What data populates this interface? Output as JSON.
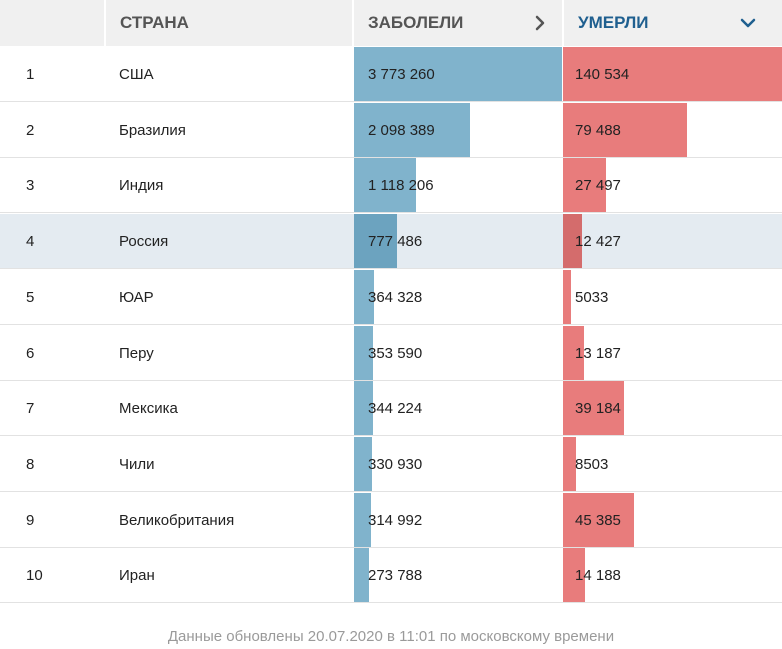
{
  "header": {
    "country": "СТРАНА",
    "cases": "ЗАБОЛЕЛИ",
    "deaths": "УМЕРЛИ"
  },
  "colors": {
    "cases_bar": "#80b3cc",
    "deaths_bar": "#e87c7c",
    "highlight_row": "#e4ebf1",
    "active_header": "#1f5f8f"
  },
  "chart_data": {
    "type": "table",
    "sorted_by": "deaths",
    "highlighted_rank": 4,
    "columns": [
      "",
      "СТРАНА",
      "ЗАБОЛЕЛИ",
      "УМЕРЛИ"
    ],
    "rows": [
      {
        "rank": "1",
        "country": "США",
        "cases": 3773260,
        "cases_label": "3 773 260",
        "deaths": 140534,
        "deaths_label": "140 534"
      },
      {
        "rank": "2",
        "country": "Бразилия",
        "cases": 2098389,
        "cases_label": "2 098 389",
        "deaths": 79488,
        "deaths_label": "79 488"
      },
      {
        "rank": "3",
        "country": "Индия",
        "cases": 1118206,
        "cases_label": "1 118 206",
        "deaths": 27497,
        "deaths_label": "27 497"
      },
      {
        "rank": "4",
        "country": "Россия",
        "cases": 777486,
        "cases_label": "777 486",
        "deaths": 12427,
        "deaths_label": "12 427"
      },
      {
        "rank": "5",
        "country": "ЮАР",
        "cases": 364328,
        "cases_label": "364 328",
        "deaths": 5033,
        "deaths_label": "5033"
      },
      {
        "rank": "6",
        "country": "Перу",
        "cases": 353590,
        "cases_label": "353 590",
        "deaths": 13187,
        "deaths_label": "13 187"
      },
      {
        "rank": "7",
        "country": "Мексика",
        "cases": 344224,
        "cases_label": "344 224",
        "deaths": 39184,
        "deaths_label": "39 184"
      },
      {
        "rank": "8",
        "country": "Чили",
        "cases": 330930,
        "cases_label": "330 930",
        "deaths": 8503,
        "deaths_label": "8503"
      },
      {
        "rank": "9",
        "country": "Великобритания",
        "cases": 314992,
        "cases_label": "314 992",
        "deaths": 45385,
        "deaths_label": "45 385"
      },
      {
        "rank": "10",
        "country": "Иран",
        "cases": 273788,
        "cases_label": "273 788",
        "deaths": 14188,
        "deaths_label": "14 188"
      }
    ]
  },
  "footer": {
    "text": "Данные обновлены 20.07.2020 в 11:01 по московскому времени"
  }
}
